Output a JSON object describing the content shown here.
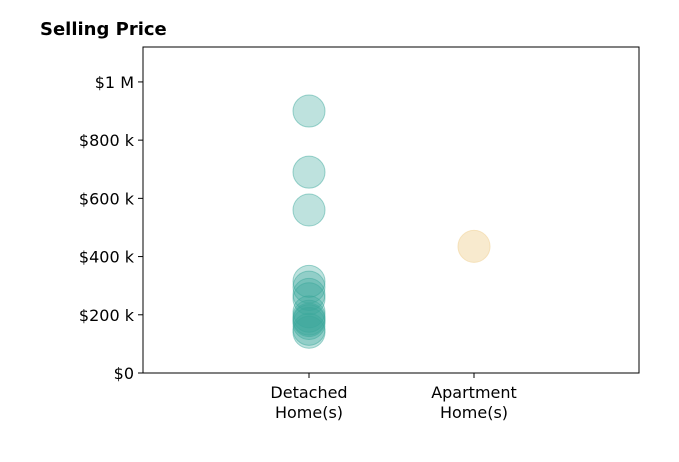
{
  "chart_data": {
    "type": "scatter",
    "title": "Selling Price",
    "xlabel": "",
    "ylabel": "",
    "categories": [
      [
        "Detached",
        "Home(s)"
      ],
      [
        "Apartment",
        "Home(s)"
      ]
    ],
    "ylim": [
      0,
      1120000
    ],
    "y_ticks": [
      0,
      200000,
      400000,
      600000,
      800000,
      1000000
    ],
    "y_tick_labels": [
      "$0",
      "$200 k",
      "$400 k",
      "$600 k",
      "$800 k",
      "$1 M"
    ],
    "grid": false,
    "series": [
      {
        "category_index": 0,
        "color": "#3aa79b",
        "opacity": 0.33,
        "values": [
          900000,
          690000,
          560000,
          315000,
          295000,
          270000,
          255000,
          210000,
          195000,
          185000,
          180000,
          170000,
          150000,
          140000
        ]
      },
      {
        "category_index": 1,
        "color": "#f2d9a6",
        "opacity": 0.55,
        "values": [
          435000
        ]
      }
    ]
  }
}
